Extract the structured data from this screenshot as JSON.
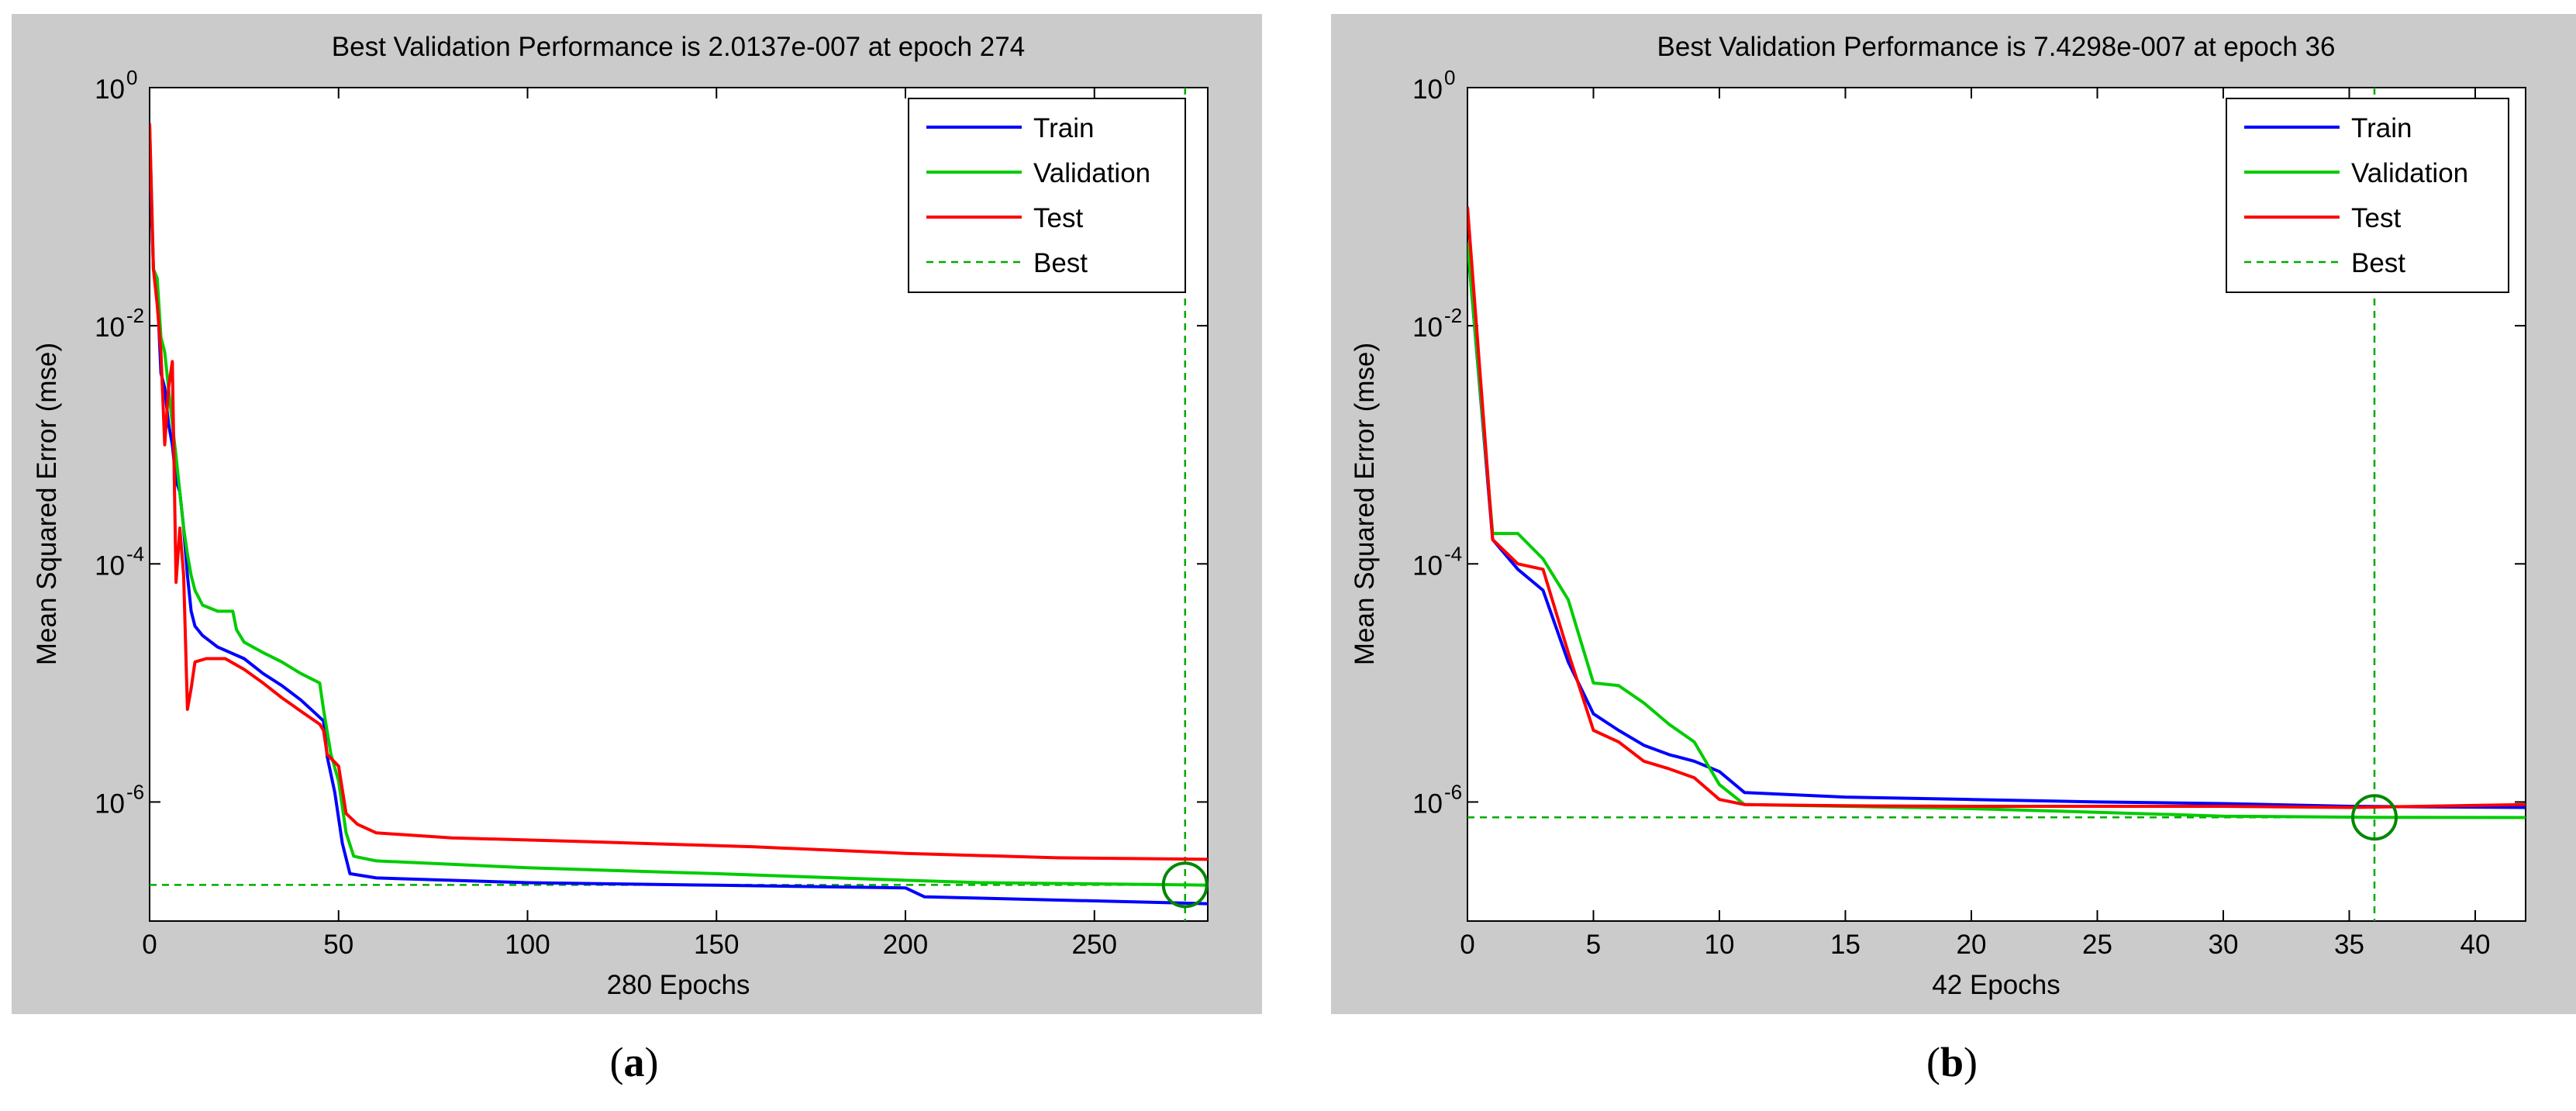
{
  "chart_data": [
    {
      "type": "line",
      "panel_label": "a",
      "title": "Best Validation Performance is 2.0137e-007 at epoch 274",
      "xlabel": "280 Epochs",
      "ylabel": "Mean Squared Error  (mse)",
      "xlim": [
        0,
        280
      ],
      "ylim_log10": [
        -7,
        0
      ],
      "x_ticks": [
        0,
        50,
        100,
        150,
        200,
        250
      ],
      "x_tick_labels": [
        "0",
        "50",
        "100",
        "150",
        "200",
        "250"
      ],
      "y_ticks_log10": [
        0,
        -2,
        -4,
        -6
      ],
      "y_tick_bases": [
        "10",
        "10",
        "10",
        "10"
      ],
      "y_tick_exponents": [
        "0",
        "-2",
        "-4",
        "-6"
      ],
      "legend_position": "top-right",
      "legend": [
        "Train",
        "Validation",
        "Test",
        "Best"
      ],
      "colors": {
        "Train": "#0000ff",
        "Validation": "#00cc00",
        "Test": "#ff0000",
        "Best": "#00aa00"
      },
      "best": {
        "epoch": 274,
        "value": 2.0137e-07
      },
      "series": [
        {
          "name": "Train",
          "points": [
            [
              0,
              0.3
            ],
            [
              1,
              0.03
            ],
            [
              2,
              0.02
            ],
            [
              3,
              0.004
            ],
            [
              4,
              0.003
            ],
            [
              5,
              0.0015
            ],
            [
              6,
              0.001
            ],
            [
              7,
              0.0005
            ],
            [
              8,
              0.0004
            ],
            [
              9,
              0.0002
            ],
            [
              10,
              8e-05
            ],
            [
              11,
              4e-05
            ],
            [
              12,
              3e-05
            ],
            [
              14,
              2.5e-05
            ],
            [
              18,
              2e-05
            ],
            [
              25,
              1.6e-05
            ],
            [
              30,
              1.2e-05
            ],
            [
              35,
              9.5e-06
            ],
            [
              40,
              7.2e-06
            ],
            [
              44,
              5.5e-06
            ],
            [
              46,
              4.8e-06
            ],
            [
              47,
              2.4e-06
            ],
            [
              49,
              1.2e-06
            ],
            [
              51,
              4.5e-07
            ],
            [
              53,
              2.5e-07
            ],
            [
              60,
              2.3e-07
            ],
            [
              100,
              2.1e-07
            ],
            [
              150,
              2e-07
            ],
            [
              200,
              1.9e-07
            ],
            [
              205,
              1.6e-07
            ],
            [
              280,
              1.4e-07
            ]
          ]
        },
        {
          "name": "Validation",
          "points": [
            [
              0,
              0.5
            ],
            [
              1,
              0.03
            ],
            [
              2,
              0.025
            ],
            [
              3,
              0.008
            ],
            [
              4,
              0.006
            ],
            [
              5,
              0.003
            ],
            [
              6,
              0.0015
            ],
            [
              7,
              0.0008
            ],
            [
              8,
              0.0004
            ],
            [
              9,
              0.0002
            ],
            [
              10,
              0.00012
            ],
            [
              11,
              8e-05
            ],
            [
              12,
              6e-05
            ],
            [
              14,
              4.5e-05
            ],
            [
              18,
              4e-05
            ],
            [
              22,
              4e-05
            ],
            [
              23,
              2.8e-05
            ],
            [
              25,
              2.2e-05
            ],
            [
              30,
              1.8e-05
            ],
            [
              35,
              1.5e-05
            ],
            [
              40,
              1.2e-05
            ],
            [
              45,
              1e-05
            ],
            [
              46,
              6e-06
            ],
            [
              48,
              2.5e-06
            ],
            [
              50,
              1.5e-06
            ],
            [
              52,
              5.5e-07
            ],
            [
              54,
              3.5e-07
            ],
            [
              60,
              3.2e-07
            ],
            [
              100,
              2.8e-07
            ],
            [
              150,
              2.5e-07
            ],
            [
              200,
              2.2e-07
            ],
            [
              220,
              2.1e-07
            ],
            [
              274,
              2.0137e-07
            ],
            [
              280,
              2e-07
            ]
          ]
        },
        {
          "name": "Test",
          "points": [
            [
              0,
              0.5
            ],
            [
              1,
              0.03
            ],
            [
              2,
              0.015
            ],
            [
              3,
              0.006
            ],
            [
              4,
              0.001
            ],
            [
              5,
              0.003
            ],
            [
              6,
              0.005
            ],
            [
              7,
              7e-05
            ],
            [
              8,
              0.0002
            ],
            [
              9,
              8e-05
            ],
            [
              10,
              6e-06
            ],
            [
              11,
              9e-06
            ],
            [
              12,
              1.5e-05
            ],
            [
              15,
              1.6e-05
            ],
            [
              20,
              1.6e-05
            ],
            [
              25,
              1.3e-05
            ],
            [
              30,
              1e-05
            ],
            [
              35,
              7.5e-06
            ],
            [
              40,
              5.8e-06
            ],
            [
              45,
              4.5e-06
            ],
            [
              46,
              4e-06
            ],
            [
              47,
              2.5e-06
            ],
            [
              50,
              2e-06
            ],
            [
              52,
              8e-07
            ],
            [
              55,
              6.5e-07
            ],
            [
              60,
              5.5e-07
            ],
            [
              80,
              5e-07
            ],
            [
              120,
              4.6e-07
            ],
            [
              160,
              4.2e-07
            ],
            [
              200,
              3.7e-07
            ],
            [
              240,
              3.4e-07
            ],
            [
              280,
              3.3e-07
            ]
          ]
        }
      ]
    },
    {
      "type": "line",
      "panel_label": "b",
      "title": "Best Validation Performance is 7.4298e-007 at epoch 36",
      "xlabel": "42 Epochs",
      "ylabel": "Mean Squared Error  (mse)",
      "xlim": [
        0,
        42
      ],
      "ylim_log10": [
        -7,
        0
      ],
      "x_ticks": [
        0,
        5,
        10,
        15,
        20,
        25,
        30,
        35,
        40
      ],
      "x_tick_labels": [
        "0",
        "5",
        "10",
        "15",
        "20",
        "25",
        "30",
        "35",
        "40"
      ],
      "y_ticks_log10": [
        0,
        -2,
        -4,
        -6
      ],
      "y_tick_bases": [
        "10",
        "10",
        "10",
        "10"
      ],
      "y_tick_exponents": [
        "0",
        "-2",
        "-4",
        "-6"
      ],
      "legend_position": "top-right",
      "legend": [
        "Train",
        "Validation",
        "Test",
        "Best"
      ],
      "colors": {
        "Train": "#0000ff",
        "Validation": "#00cc00",
        "Test": "#ff0000",
        "Best": "#00aa00"
      },
      "best": {
        "epoch": 36,
        "value": 7.4298e-07
      },
      "series": [
        {
          "name": "Train",
          "points": [
            [
              0,
              0.05
            ],
            [
              1,
              0.00016
            ],
            [
              2,
              9e-05
            ],
            [
              3,
              6e-05
            ],
            [
              4,
              1.5e-05
            ],
            [
              5,
              5.5e-06
            ],
            [
              6,
              4e-06
            ],
            [
              7,
              3e-06
            ],
            [
              8,
              2.5e-06
            ],
            [
              9,
              2.2e-06
            ],
            [
              10,
              1.8e-06
            ],
            [
              11,
              1.2e-06
            ],
            [
              15,
              1.1e-06
            ],
            [
              20,
              1.05e-06
            ],
            [
              25,
              1e-06
            ],
            [
              30,
              9.7e-07
            ],
            [
              35,
              9.2e-07
            ],
            [
              42,
              9e-07
            ]
          ]
        },
        {
          "name": "Validation",
          "points": [
            [
              0,
              0.05
            ],
            [
              1,
              0.00018
            ],
            [
              2,
              0.00018
            ],
            [
              3,
              0.00011
            ],
            [
              4,
              5e-05
            ],
            [
              5,
              1e-05
            ],
            [
              6,
              9.5e-06
            ],
            [
              7,
              6.8e-06
            ],
            [
              8,
              4.5e-06
            ],
            [
              9,
              3.2e-06
            ],
            [
              10,
              1.4e-06
            ],
            [
              11,
              9.5e-07
            ],
            [
              15,
              9.2e-07
            ],
            [
              20,
              8.8e-07
            ],
            [
              25,
              8.2e-07
            ],
            [
              30,
              7.6e-07
            ],
            [
              36,
              7.4298e-07
            ],
            [
              42,
              7.4e-07
            ]
          ]
        },
        {
          "name": "Test",
          "points": [
            [
              0,
              0.1
            ],
            [
              1,
              0.00016
            ],
            [
              2,
              0.0001
            ],
            [
              3,
              9e-05
            ],
            [
              4,
              1.8e-05
            ],
            [
              5,
              4e-06
            ],
            [
              6,
              3.2e-06
            ],
            [
              7,
              2.2e-06
            ],
            [
              8,
              1.9e-06
            ],
            [
              9,
              1.6e-06
            ],
            [
              10,
              1.05e-06
            ],
            [
              11,
              9.5e-07
            ],
            [
              15,
              9.3e-07
            ],
            [
              20,
              9.2e-07
            ],
            [
              25,
              9.2e-07
            ],
            [
              30,
              9.2e-07
            ],
            [
              35,
              9e-07
            ],
            [
              42,
              9.5e-07
            ]
          ]
        }
      ]
    }
  ]
}
